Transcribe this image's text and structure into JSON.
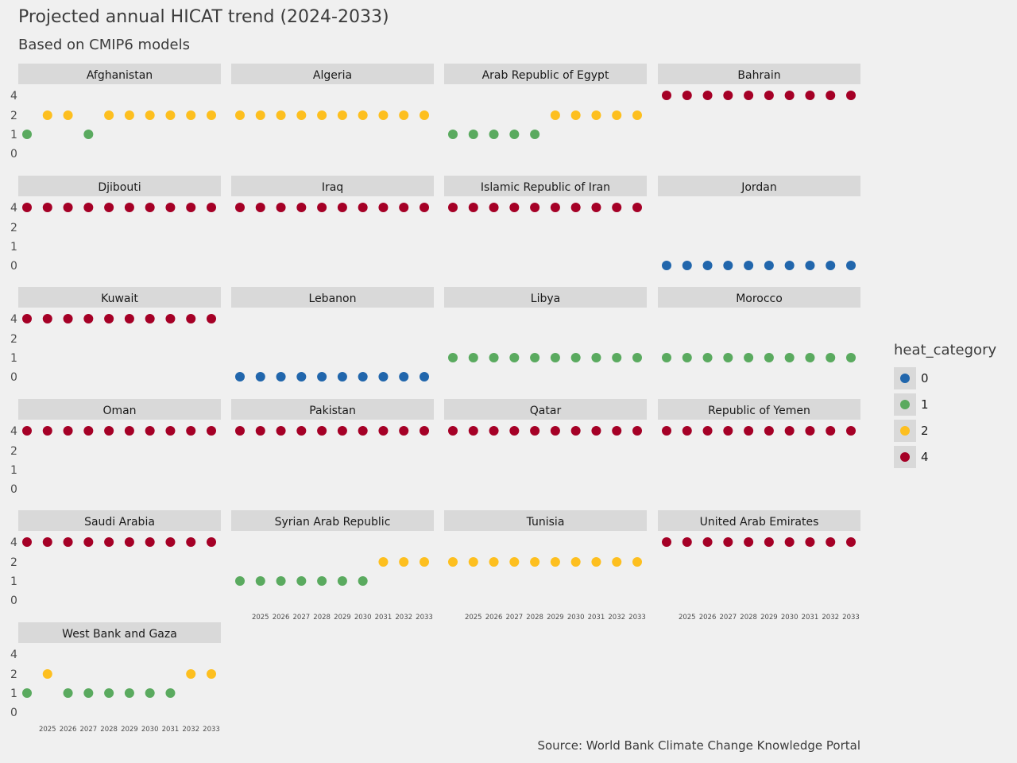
{
  "chart_data": {
    "type": "scatter",
    "title": "Projected annual HICAT trend (2024-2033)",
    "subtitle": "Based on CMIP6 models",
    "caption": "Source: World Bank Climate Change Knowledge Portal",
    "facet_layout": "wrap",
    "x": [
      2024,
      2025,
      2026,
      2027,
      2028,
      2029,
      2030,
      2031,
      2032,
      2033
    ],
    "x_ticks": [
      2025,
      2026,
      2027,
      2028,
      2029,
      2030,
      2031,
      2032,
      2033
    ],
    "y_ticks": [
      0,
      1,
      2,
      4
    ],
    "legend": {
      "title": "heat_category",
      "position": "right",
      "entries": [
        {
          "label": "0",
          "color": "#2166ac"
        },
        {
          "label": "1",
          "color": "#5aaa5f"
        },
        {
          "label": "2",
          "color": "#fdbf1f"
        },
        {
          "label": "4",
          "color": "#a50026"
        }
      ]
    },
    "panels": [
      {
        "name": "Afghanistan",
        "values": [
          1,
          2,
          2,
          1,
          2,
          2,
          2,
          2,
          2,
          2
        ]
      },
      {
        "name": "Algeria",
        "values": [
          2,
          2,
          2,
          2,
          2,
          2,
          2,
          2,
          2,
          2
        ]
      },
      {
        "name": "Arab Republic of Egypt",
        "values": [
          1,
          1,
          1,
          1,
          1,
          2,
          2,
          2,
          2,
          2
        ]
      },
      {
        "name": "Bahrain",
        "values": [
          4,
          4,
          4,
          4,
          4,
          4,
          4,
          4,
          4,
          4
        ]
      },
      {
        "name": "Djibouti",
        "values": [
          4,
          4,
          4,
          4,
          4,
          4,
          4,
          4,
          4,
          4
        ]
      },
      {
        "name": "Iraq",
        "values": [
          4,
          4,
          4,
          4,
          4,
          4,
          4,
          4,
          4,
          4
        ]
      },
      {
        "name": "Islamic Republic of Iran",
        "values": [
          4,
          4,
          4,
          4,
          4,
          4,
          4,
          4,
          4,
          4
        ]
      },
      {
        "name": "Jordan",
        "values": [
          0,
          0,
          0,
          0,
          0,
          0,
          0,
          0,
          0,
          0
        ]
      },
      {
        "name": "Kuwait",
        "values": [
          4,
          4,
          4,
          4,
          4,
          4,
          4,
          4,
          4,
          4
        ]
      },
      {
        "name": "Lebanon",
        "values": [
          0,
          0,
          0,
          0,
          0,
          0,
          0,
          0,
          0,
          0
        ]
      },
      {
        "name": "Libya",
        "values": [
          1,
          1,
          1,
          1,
          1,
          1,
          1,
          1,
          1,
          1
        ]
      },
      {
        "name": "Morocco",
        "values": [
          1,
          1,
          1,
          1,
          1,
          1,
          1,
          1,
          1,
          1
        ]
      },
      {
        "name": "Oman",
        "values": [
          4,
          4,
          4,
          4,
          4,
          4,
          4,
          4,
          4,
          4
        ]
      },
      {
        "name": "Pakistan",
        "values": [
          4,
          4,
          4,
          4,
          4,
          4,
          4,
          4,
          4,
          4
        ]
      },
      {
        "name": "Qatar",
        "values": [
          4,
          4,
          4,
          4,
          4,
          4,
          4,
          4,
          4,
          4
        ]
      },
      {
        "name": "Republic of Yemen",
        "values": [
          4,
          4,
          4,
          4,
          4,
          4,
          4,
          4,
          4,
          4
        ]
      },
      {
        "name": "Saudi Arabia",
        "values": [
          4,
          4,
          4,
          4,
          4,
          4,
          4,
          4,
          4,
          4
        ]
      },
      {
        "name": "Syrian Arab Republic",
        "values": [
          1,
          1,
          1,
          1,
          1,
          1,
          1,
          2,
          2,
          2
        ]
      },
      {
        "name": "Tunisia",
        "values": [
          2,
          2,
          2,
          2,
          2,
          2,
          2,
          2,
          2,
          2
        ]
      },
      {
        "name": "United Arab Emirates",
        "values": [
          4,
          4,
          4,
          4,
          4,
          4,
          4,
          4,
          4,
          4
        ]
      },
      {
        "name": "West Bank and Gaza",
        "values": [
          1,
          2,
          1,
          1,
          1,
          1,
          1,
          1,
          2,
          2
        ]
      }
    ]
  }
}
